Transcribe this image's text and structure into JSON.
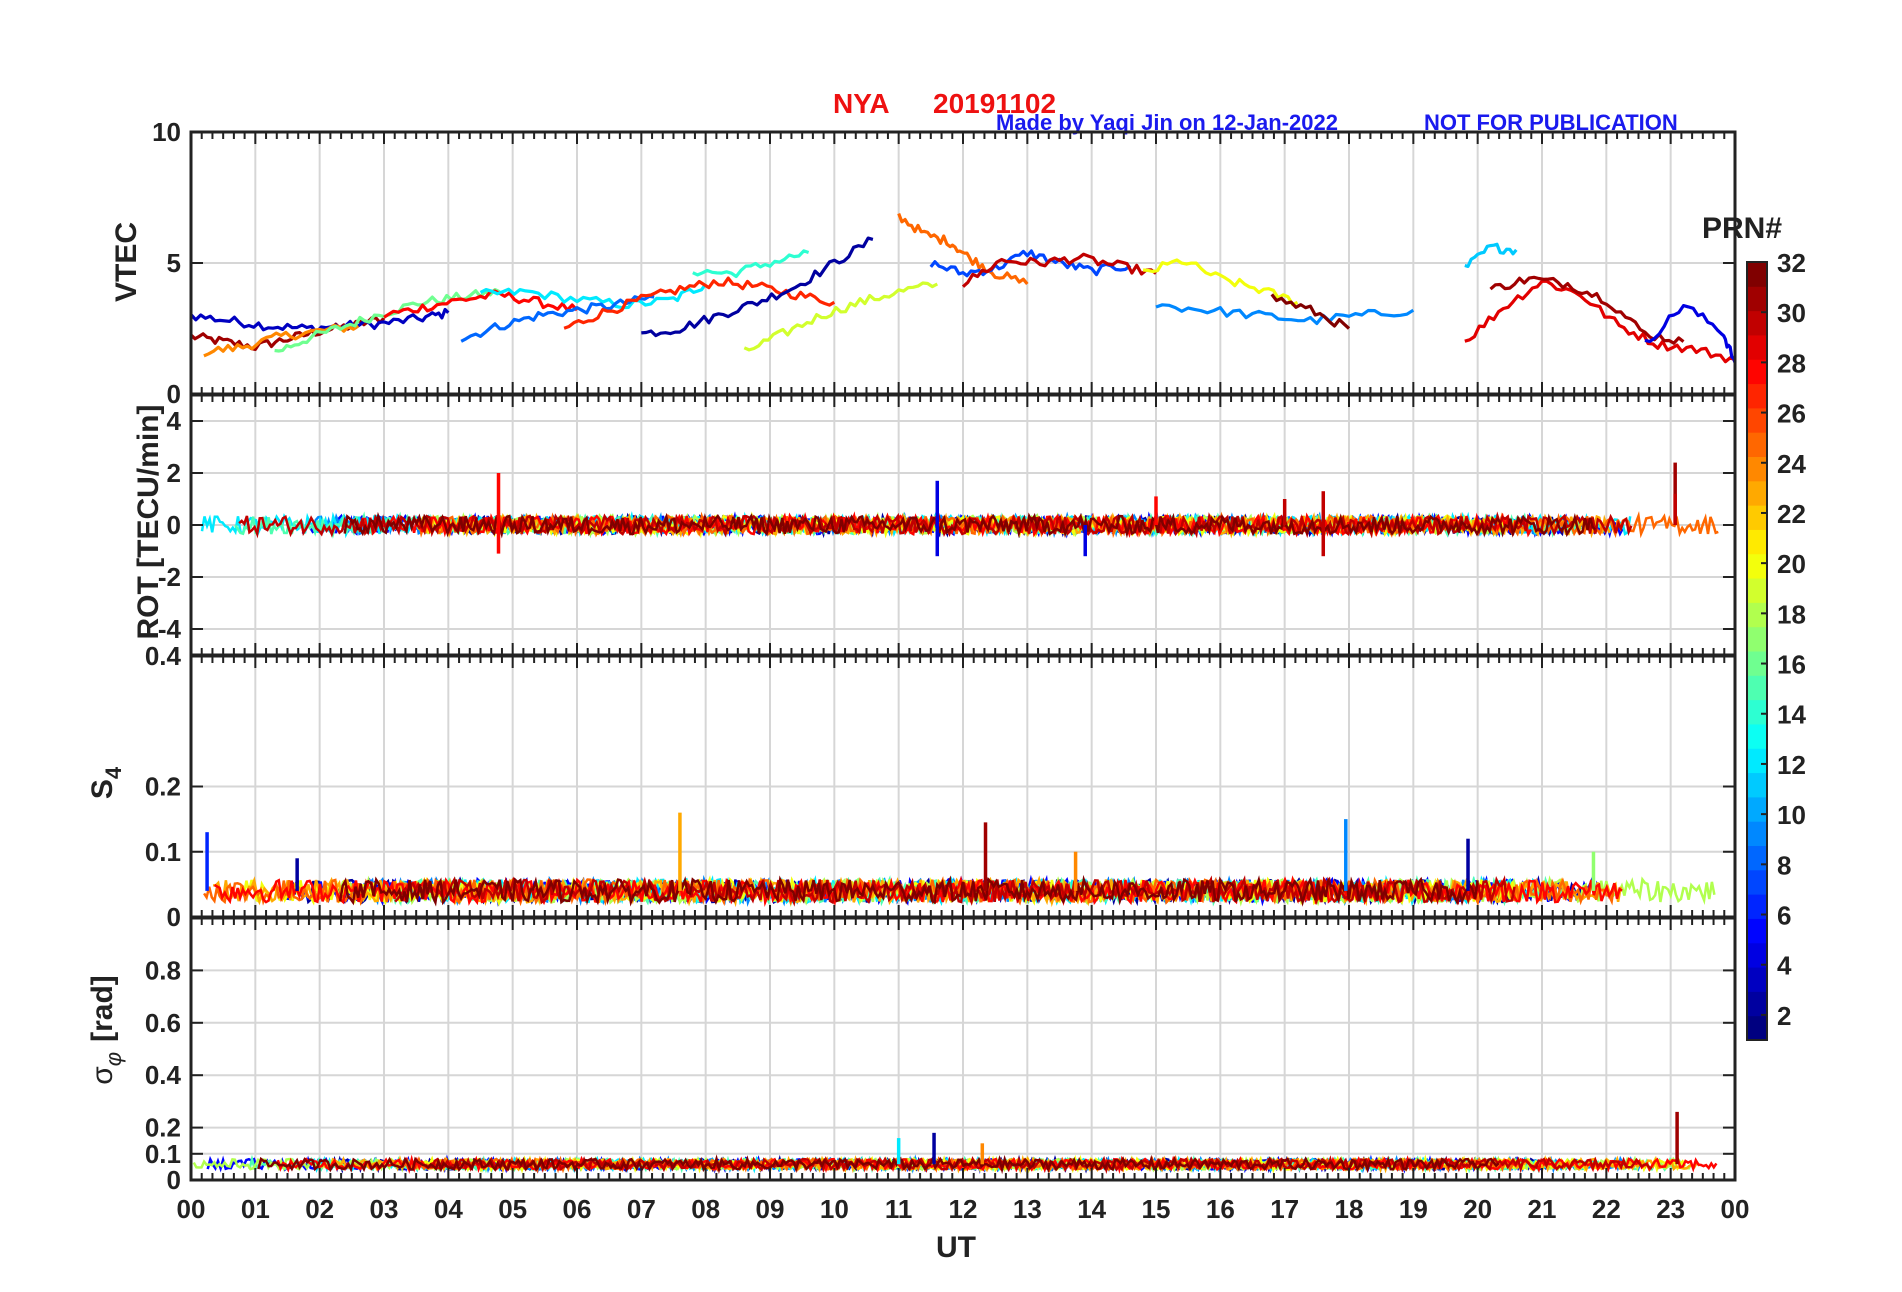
{
  "title": {
    "station": "NYA",
    "date": "20191102",
    "credit": "Made by Yaqi Jin on 12-Jan-2022",
    "notice": "NOT FOR PUBLICATION"
  },
  "xaxis": {
    "label": "UT",
    "ticks": [
      "00",
      "01",
      "02",
      "03",
      "04",
      "05",
      "06",
      "07",
      "08",
      "09",
      "10",
      "11",
      "12",
      "13",
      "14",
      "15",
      "16",
      "17",
      "18",
      "19",
      "20",
      "21",
      "22",
      "23",
      "00"
    ]
  },
  "colorbar": {
    "label": "PRN#",
    "ticks": [
      "2",
      "4",
      "6",
      "8",
      "10",
      "12",
      "14",
      "16",
      "18",
      "20",
      "22",
      "24",
      "26",
      "28",
      "30",
      "32"
    ],
    "range": [
      1,
      32
    ],
    "colormap": "jet"
  },
  "panels": [
    {
      "key": "vtec",
      "ylabel": "VTEC",
      "ylim": [
        0,
        10
      ],
      "yticks": [
        "0",
        "5",
        "10"
      ]
    },
    {
      "key": "rot",
      "ylabel": "ROT [TECU/min]",
      "ylim": [
        -5,
        5
      ],
      "yticks": [
        "-4",
        "-2",
        "0",
        "2",
        "4"
      ]
    },
    {
      "key": "s4",
      "ylabel_base": "S",
      "ylabel_sub": "4",
      "ylim": [
        0,
        0.4
      ],
      "yticks": [
        "0",
        "0.1",
        "0.2",
        "0.4"
      ]
    },
    {
      "key": "sigphi",
      "ylabel_base": "σ",
      "ylabel_sub": "φ",
      "ylabel_unit": "[rad]",
      "ylim": [
        0,
        1
      ],
      "yticks": [
        "0",
        "0.1",
        "0.2",
        "0.4",
        "0.6",
        "0.8"
      ]
    }
  ],
  "chart_data": [
    {
      "type": "line",
      "panel": "VTEC",
      "xlabel": "UT",
      "ylabel": "VTEC",
      "xlim": [
        0,
        24
      ],
      "ylim": [
        0,
        10
      ],
      "grid": true,
      "series": [
        {
          "prn": 31,
          "x": [
            0.0,
            0.5,
            1.0,
            1.5,
            2.0,
            2.5,
            3.0
          ],
          "y": [
            2.2,
            2.0,
            1.8,
            2.1,
            2.4,
            2.6,
            2.9
          ]
        },
        {
          "prn": 3,
          "x": [
            0.0,
            0.6,
            1.2,
            1.8,
            2.4,
            3.0,
            3.6,
            4.0
          ],
          "y": [
            3.0,
            2.8,
            2.6,
            2.5,
            2.6,
            2.7,
            2.9,
            3.1
          ]
        },
        {
          "prn": 24,
          "x": [
            0.2,
            0.8,
            1.4,
            2.0,
            2.6
          ],
          "y": [
            1.6,
            1.8,
            2.2,
            2.4,
            2.6
          ]
        },
        {
          "prn": 16,
          "x": [
            1.3,
            1.8,
            2.4,
            3.0,
            3.6,
            4.2,
            4.8
          ],
          "y": [
            1.6,
            2.1,
            2.6,
            3.1,
            3.5,
            3.7,
            3.9
          ]
        },
        {
          "prn": 28,
          "x": [
            3.0,
            3.6,
            4.2,
            4.8,
            5.4,
            6.0
          ],
          "y": [
            3.0,
            3.3,
            3.6,
            3.8,
            3.5,
            3.2
          ]
        },
        {
          "prn": 12,
          "x": [
            4.5,
            5.2,
            6.0,
            6.8,
            7.5,
            8.0
          ],
          "y": [
            3.8,
            3.9,
            3.6,
            3.4,
            3.6,
            4.2
          ]
        },
        {
          "prn": 8,
          "x": [
            4.2,
            4.8,
            5.4,
            6.0,
            6.6,
            7.2
          ],
          "y": [
            2.1,
            2.6,
            3.0,
            3.2,
            3.4,
            3.7
          ]
        },
        {
          "prn": 27,
          "x": [
            5.8,
            6.4,
            7.0,
            7.6,
            8.2,
            8.8,
            9.4,
            10.0
          ],
          "y": [
            2.5,
            3.1,
            3.6,
            4.0,
            4.3,
            4.1,
            3.8,
            3.5
          ]
        },
        {
          "prn": 2,
          "x": [
            7.0,
            7.6,
            8.2,
            8.8,
            9.4,
            10.0,
            10.6
          ],
          "y": [
            2.3,
            2.5,
            3.0,
            3.5,
            4.1,
            5.0,
            5.9
          ]
        },
        {
          "prn": 14,
          "x": [
            7.8,
            8.4,
            9.0,
            9.6
          ],
          "y": [
            4.7,
            4.6,
            5.0,
            5.4
          ]
        },
        {
          "prn": 19,
          "x": [
            8.6,
            9.2,
            9.8,
            10.4,
            11.0,
            11.6
          ],
          "y": [
            1.6,
            2.3,
            3.0,
            3.5,
            3.9,
            4.2
          ]
        },
        {
          "prn": 25,
          "x": [
            11.0,
            11.4,
            11.8,
            12.1,
            12.5,
            13.0
          ],
          "y": [
            6.8,
            6.1,
            5.8,
            5.2,
            4.6,
            4.2
          ]
        },
        {
          "prn": 7,
          "x": [
            11.5,
            12.0,
            12.5,
            13.0,
            13.5,
            14.0,
            14.6
          ],
          "y": [
            5.0,
            4.6,
            4.8,
            5.4,
            5.0,
            4.7,
            4.9
          ]
        },
        {
          "prn": 30,
          "x": [
            12.0,
            12.6,
            13.2,
            13.8,
            14.4,
            15.0
          ],
          "y": [
            4.2,
            5.1,
            5.0,
            5.2,
            4.9,
            4.6
          ]
        },
        {
          "prn": 20,
          "x": [
            14.8,
            15.4,
            16.0,
            16.6,
            17.2
          ],
          "y": [
            4.6,
            5.1,
            4.4,
            4.0,
            3.5
          ]
        },
        {
          "prn": 9,
          "x": [
            15.0,
            15.8,
            16.6,
            17.4,
            18.2,
            19.0
          ],
          "y": [
            3.4,
            3.2,
            3.0,
            2.8,
            3.0,
            3.2
          ]
        },
        {
          "prn": 32,
          "x": [
            16.8,
            17.4,
            18.0
          ],
          "y": [
            3.7,
            3.2,
            2.5
          ]
        },
        {
          "prn": 11,
          "x": [
            19.8,
            20.2,
            20.6
          ],
          "y": [
            4.8,
            5.6,
            5.5
          ]
        },
        {
          "prn": 29,
          "x": [
            19.8,
            20.4,
            21.0,
            21.6,
            22.2,
            22.8,
            23.4,
            24.0
          ],
          "y": [
            2.0,
            3.3,
            4.3,
            3.8,
            2.6,
            1.9,
            1.7,
            1.3
          ]
        },
        {
          "prn": 31,
          "x": [
            20.2,
            20.8,
            21.4,
            22.0,
            22.6,
            23.2
          ],
          "y": [
            4.0,
            4.4,
            4.2,
            3.6,
            2.3,
            2.0
          ]
        },
        {
          "prn": 4,
          "x": [
            22.6,
            23.2,
            23.8,
            24.0
          ],
          "y": [
            1.9,
            3.4,
            2.4,
            1.2
          ]
        }
      ]
    },
    {
      "type": "line",
      "panel": "ROT",
      "xlabel": "UT",
      "ylabel": "ROT [TECU/min]",
      "xlim": [
        0,
        24
      ],
      "ylim": [
        -5,
        5
      ],
      "grid": true,
      "baseline": 0,
      "spikes": [
        {
          "x": 4.78,
          "y": 2.0,
          "prn": 28
        },
        {
          "x": 4.78,
          "y": -1.1,
          "prn": 28
        },
        {
          "x": 11.6,
          "y": 1.7,
          "prn": 4
        },
        {
          "x": 11.6,
          "y": -1.2,
          "prn": 4
        },
        {
          "x": 13.9,
          "y": -1.2,
          "prn": 4
        },
        {
          "x": 15.0,
          "y": 1.1,
          "prn": 28
        },
        {
          "x": 17.0,
          "y": 1.0,
          "prn": 30
        },
        {
          "x": 17.6,
          "y": 1.3,
          "prn": 30
        },
        {
          "x": 17.6,
          "y": -1.2,
          "prn": 30
        },
        {
          "x": 23.07,
          "y": 2.4,
          "prn": 31
        },
        {
          "x": 23.07,
          "y": 1.2,
          "prn": 30
        }
      ]
    },
    {
      "type": "line",
      "panel": "S4",
      "xlabel": "UT",
      "ylabel": "S4",
      "xlim": [
        0,
        24
      ],
      "ylim": [
        0,
        0.4
      ],
      "grid": true,
      "baseline": 0.04,
      "spikes": [
        {
          "x": 0.25,
          "y": 0.13,
          "prn": 6
        },
        {
          "x": 1.65,
          "y": 0.09,
          "prn": 2
        },
        {
          "x": 7.6,
          "y": 0.16,
          "prn": 23
        },
        {
          "x": 12.35,
          "y": 0.145,
          "prn": 31
        },
        {
          "x": 13.75,
          "y": 0.1,
          "prn": 24
        },
        {
          "x": 17.95,
          "y": 0.15,
          "prn": 9
        },
        {
          "x": 19.85,
          "y": 0.12,
          "prn": 2
        },
        {
          "x": 21.8,
          "y": 0.1,
          "prn": 17
        }
      ]
    },
    {
      "type": "line",
      "panel": "sigma_phi",
      "xlabel": "UT",
      "ylabel": "sigma_phi [rad]",
      "xlim": [
        0,
        24
      ],
      "ylim": [
        0,
        1
      ],
      "grid": true,
      "baseline": 0.06,
      "spikes": [
        {
          "x": 11.55,
          "y": 0.18,
          "prn": 2
        },
        {
          "x": 23.1,
          "y": 0.26,
          "prn": 31
        },
        {
          "x": 12.3,
          "y": 0.14,
          "prn": 24
        },
        {
          "x": 11.0,
          "y": 0.16,
          "prn": 12
        }
      ]
    }
  ]
}
